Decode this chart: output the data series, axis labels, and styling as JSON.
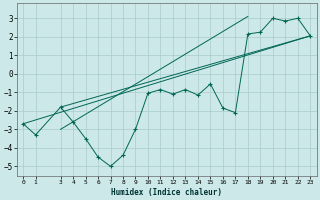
{
  "xlabel": "Humidex (Indice chaleur)",
  "bg_color": "#cce8e8",
  "grid_color": "#aacccc",
  "line_color": "#006655",
  "xlim": [
    -0.5,
    23.5
  ],
  "ylim": [
    -5.5,
    3.8
  ],
  "xticks": [
    0,
    1,
    3,
    4,
    5,
    6,
    7,
    8,
    9,
    10,
    11,
    12,
    13,
    14,
    15,
    16,
    17,
    18,
    19,
    20,
    21,
    22,
    23
  ],
  "yticks": [
    -5,
    -4,
    -3,
    -2,
    -1,
    0,
    1,
    2,
    3
  ],
  "curve1_x": [
    0,
    1,
    3,
    4,
    5,
    6,
    7,
    8,
    9,
    10,
    11,
    12,
    13,
    14,
    15,
    16,
    17,
    18,
    19,
    20,
    21,
    22,
    23
  ],
  "curve1_y": [
    -2.7,
    -3.3,
    -1.8,
    -2.6,
    -3.5,
    -4.5,
    -5.0,
    -4.4,
    -3.0,
    -1.05,
    -0.85,
    -1.1,
    -0.85,
    -1.15,
    -0.55,
    -1.85,
    -2.1,
    2.15,
    2.25,
    3.0,
    2.85,
    3.0,
    2.05
  ],
  "line1_x": [
    0,
    23
  ],
  "line1_y": [
    -2.7,
    2.05
  ],
  "line2_x": [
    3,
    23
  ],
  "line2_y": [
    -1.8,
    2.05
  ],
  "line3_x": [
    3,
    18
  ],
  "line3_y": [
    -3.0,
    3.1
  ]
}
